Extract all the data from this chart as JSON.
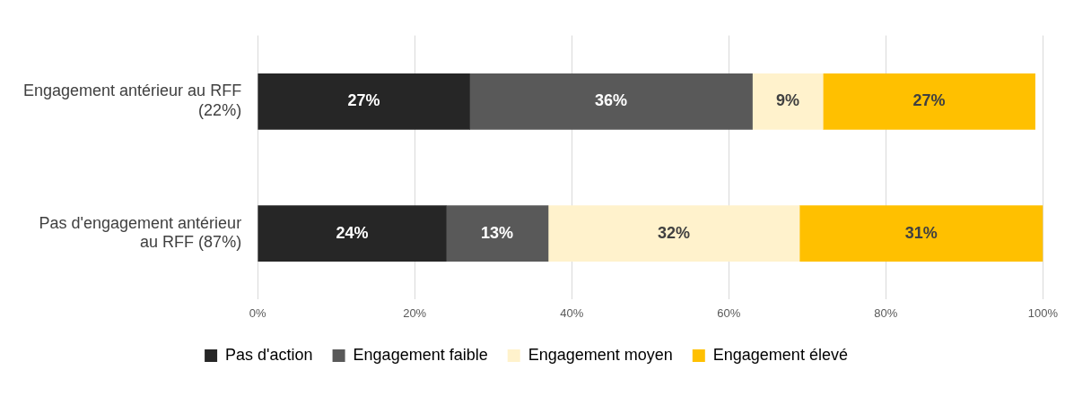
{
  "chart_data": {
    "type": "bar",
    "orientation": "horizontal",
    "stacked": true,
    "categories": [
      "Engagement antérieur au RFF (22%)",
      "Pas d'engagement antérieur au RFF (87%)"
    ],
    "series": [
      {
        "name": "Pas d'action",
        "color": "#262626",
        "values": [
          27,
          24
        ],
        "value_labels": [
          "27%",
          "24%"
        ]
      },
      {
        "name": "Engagement faible",
        "color": "#595959",
        "values": [
          36,
          13
        ],
        "value_labels": [
          "36%",
          "13%"
        ]
      },
      {
        "name": "Engagement moyen",
        "color": "#fff2cc",
        "values": [
          9,
          32
        ],
        "value_labels": [
          "9%",
          "32%"
        ]
      },
      {
        "name": "Engagement élevé",
        "color": "#ffc000",
        "values": [
          27,
          31
        ],
        "value_labels": [
          "27%",
          "31%"
        ]
      }
    ],
    "xlim": [
      0,
      100
    ],
    "xticks": [
      {
        "value": 0,
        "label": "0%"
      },
      {
        "value": 20,
        "label": "20%"
      },
      {
        "value": 40,
        "label": "40%"
      },
      {
        "value": 60,
        "label": "60%"
      },
      {
        "value": 80,
        "label": "80%"
      },
      {
        "value": 100,
        "label": "100%"
      }
    ],
    "grid": "x",
    "legend": "bottom"
  }
}
